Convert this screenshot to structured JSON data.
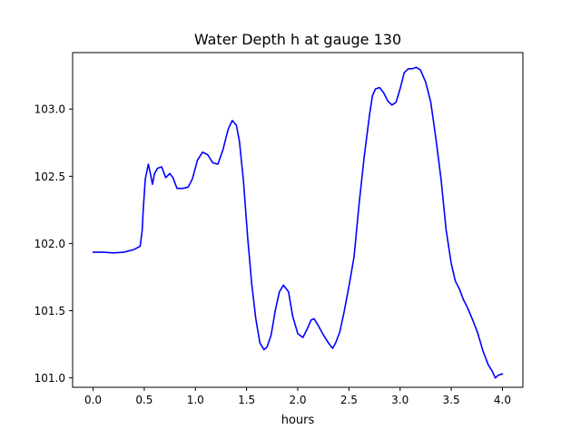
{
  "chart_data": {
    "type": "line",
    "title": "Water Depth h at gauge 130",
    "xlabel": "hours",
    "ylabel": "",
    "xlim": [
      -0.2,
      4.2
    ],
    "ylim": [
      100.93,
      103.42
    ],
    "grid": false,
    "x_ticks": [
      0.0,
      0.5,
      1.0,
      1.5,
      2.0,
      2.5,
      3.0,
      3.5,
      4.0
    ],
    "x_tick_labels": [
      "0.0",
      "0.5",
      "1.0",
      "1.5",
      "2.0",
      "2.5",
      "3.0",
      "3.5",
      "4.0"
    ],
    "y_ticks": [
      101.0,
      101.5,
      102.0,
      102.5,
      103.0
    ],
    "y_tick_labels": [
      "101.0",
      "101.5",
      "102.0",
      "102.5",
      "103.0"
    ],
    "series": [
      {
        "color": "#0000ff",
        "points": [
          [
            0.0,
            101.935
          ],
          [
            0.1,
            101.935
          ],
          [
            0.2,
            101.93
          ],
          [
            0.3,
            101.935
          ],
          [
            0.4,
            101.955
          ],
          [
            0.46,
            101.98
          ],
          [
            0.48,
            102.1
          ],
          [
            0.49,
            102.25
          ],
          [
            0.51,
            102.48
          ],
          [
            0.54,
            102.59
          ],
          [
            0.56,
            102.52
          ],
          [
            0.58,
            102.44
          ],
          [
            0.6,
            102.52
          ],
          [
            0.63,
            102.56
          ],
          [
            0.67,
            102.57
          ],
          [
            0.71,
            102.49
          ],
          [
            0.75,
            102.52
          ],
          [
            0.78,
            102.49
          ],
          [
            0.82,
            102.41
          ],
          [
            0.88,
            102.41
          ],
          [
            0.93,
            102.42
          ],
          [
            0.97,
            102.48
          ],
          [
            1.02,
            102.62
          ],
          [
            1.07,
            102.68
          ],
          [
            1.12,
            102.66
          ],
          [
            1.17,
            102.6
          ],
          [
            1.22,
            102.59
          ],
          [
            1.27,
            102.7
          ],
          [
            1.32,
            102.85
          ],
          [
            1.36,
            102.915
          ],
          [
            1.4,
            102.88
          ],
          [
            1.43,
            102.76
          ],
          [
            1.47,
            102.46
          ],
          [
            1.51,
            102.05
          ],
          [
            1.55,
            101.7
          ],
          [
            1.59,
            101.44
          ],
          [
            1.63,
            101.26
          ],
          [
            1.67,
            101.21
          ],
          [
            1.7,
            101.23
          ],
          [
            1.74,
            101.32
          ],
          [
            1.78,
            101.5
          ],
          [
            1.82,
            101.64
          ],
          [
            1.86,
            101.69
          ],
          [
            1.91,
            101.64
          ],
          [
            1.95,
            101.46
          ],
          [
            2.0,
            101.33
          ],
          [
            2.05,
            101.3
          ],
          [
            2.09,
            101.36
          ],
          [
            2.13,
            101.43
          ],
          [
            2.16,
            101.44
          ],
          [
            2.2,
            101.39
          ],
          [
            2.25,
            101.32
          ],
          [
            2.3,
            101.26
          ],
          [
            2.34,
            101.22
          ],
          [
            2.37,
            101.26
          ],
          [
            2.41,
            101.34
          ],
          [
            2.45,
            101.48
          ],
          [
            2.5,
            101.68
          ],
          [
            2.55,
            101.9
          ],
          [
            2.6,
            102.3
          ],
          [
            2.65,
            102.65
          ],
          [
            2.7,
            102.95
          ],
          [
            2.73,
            103.1
          ],
          [
            2.76,
            103.15
          ],
          [
            2.8,
            103.16
          ],
          [
            2.84,
            103.12
          ],
          [
            2.88,
            103.06
          ],
          [
            2.92,
            103.03
          ],
          [
            2.96,
            103.05
          ],
          [
            3.0,
            103.15
          ],
          [
            3.04,
            103.27
          ],
          [
            3.08,
            103.3
          ],
          [
            3.12,
            103.3
          ],
          [
            3.16,
            103.31
          ],
          [
            3.2,
            103.29
          ],
          [
            3.25,
            103.2
          ],
          [
            3.3,
            103.05
          ],
          [
            3.35,
            102.78
          ],
          [
            3.4,
            102.48
          ],
          [
            3.45,
            102.1
          ],
          [
            3.5,
            101.85
          ],
          [
            3.54,
            101.72
          ],
          [
            3.58,
            101.66
          ],
          [
            3.62,
            101.58
          ],
          [
            3.66,
            101.52
          ],
          [
            3.71,
            101.43
          ],
          [
            3.76,
            101.33
          ],
          [
            3.81,
            101.2
          ],
          [
            3.86,
            101.1
          ],
          [
            3.9,
            101.05
          ],
          [
            3.93,
            101.0
          ],
          [
            3.96,
            101.02
          ],
          [
            4.0,
            101.03
          ]
        ]
      }
    ]
  }
}
